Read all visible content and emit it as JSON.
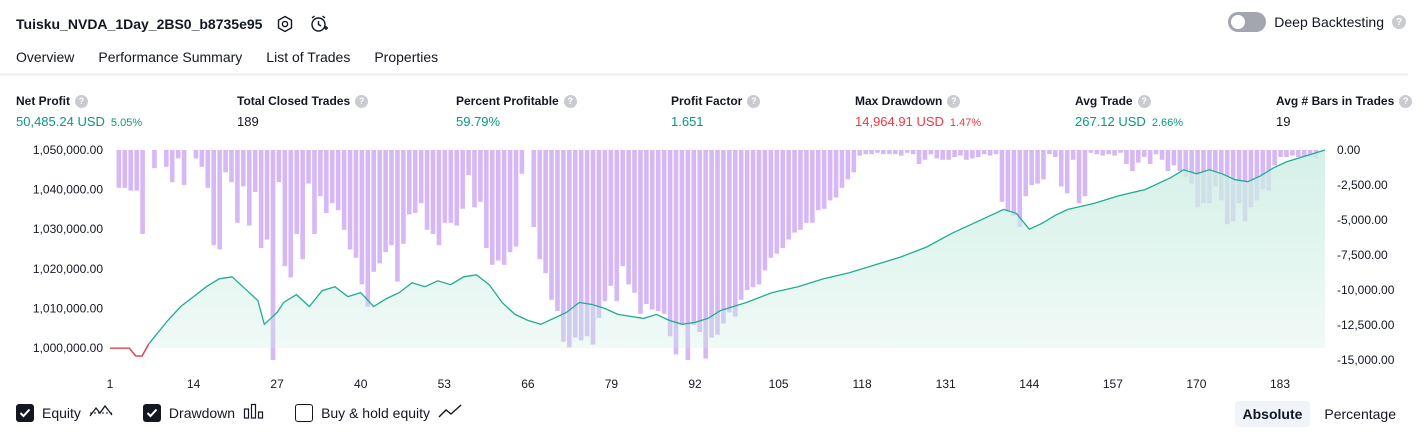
{
  "header": {
    "title": "Tuisku_NVDA_1Day_2BS0_b8735e95",
    "deep_backtesting_label": "Deep Backtesting",
    "help_glyph": "?"
  },
  "tabs": [
    {
      "label": "Overview",
      "active": true
    },
    {
      "label": "Performance Summary",
      "active": false
    },
    {
      "label": "List of Trades",
      "active": false
    },
    {
      "label": "Properties",
      "active": false
    }
  ],
  "metrics": [
    {
      "label": "Net Profit",
      "value": "50,485.24 USD",
      "pct": "5.05%",
      "color": "green"
    },
    {
      "label": "Total Closed Trades",
      "value": "189",
      "pct": "",
      "color": "dark"
    },
    {
      "label": "Percent Profitable",
      "value": "59.79%",
      "pct": "",
      "color": "green"
    },
    {
      "label": "Profit Factor",
      "value": "1.651",
      "pct": "",
      "color": "green"
    },
    {
      "label": "Max Drawdown",
      "value": "14,964.91 USD",
      "pct": "1.47%",
      "color": "red"
    },
    {
      "label": "Avg Trade",
      "value": "267.12 USD",
      "pct": "2.66%",
      "color": "green"
    },
    {
      "label": "Avg # Bars in Trades",
      "value": "19",
      "pct": "",
      "color": "dark"
    }
  ],
  "colors": {
    "green": "#089981",
    "red": "#f23645",
    "equity_line": "#22ab94",
    "equity_fill": "#cdeee4",
    "drawdown_bar": "#d6b8f5",
    "overlap_line": "#2962ff"
  },
  "chart_data": {
    "type": "area",
    "x_ticks": [
      "1",
      "14",
      "27",
      "40",
      "53",
      "66",
      "79",
      "92",
      "105",
      "118",
      "131",
      "144",
      "157",
      "170",
      "183"
    ],
    "y_left_ticks": [
      "1,050,000.00",
      "1,040,000.00",
      "1,030,000.00",
      "1,020,000.00",
      "1,010,000.00",
      "1,000,000.00"
    ],
    "y_right_ticks": [
      "0.00",
      "-2,500.00",
      "-5,000.00",
      "-7,500.00",
      "-10,000.00",
      "-12,500.00",
      "-15,000.00"
    ],
    "y_left_range": [
      997000,
      1050000
    ],
    "y_right_range": [
      -15000,
      0
    ],
    "x_range": [
      1,
      190
    ],
    "series": [
      {
        "name": "Equity",
        "type": "area",
        "x": [
          1,
          4,
          5,
          6,
          7,
          8,
          10,
          12,
          14,
          16,
          18,
          20,
          22,
          24,
          25,
          27,
          28,
          30,
          32,
          34,
          36,
          38,
          40,
          42,
          44,
          46,
          48,
          50,
          52,
          54,
          56,
          58,
          60,
          62,
          64,
          66,
          68,
          70,
          72,
          74,
          76,
          78,
          80,
          82,
          84,
          86,
          88,
          90,
          92,
          94,
          96,
          98,
          100,
          104,
          108,
          112,
          116,
          120,
          124,
          128,
          132,
          136,
          140,
          142,
          144,
          146,
          148,
          150,
          154,
          158,
          162,
          166,
          168,
          170,
          172,
          174,
          176,
          178,
          180,
          182,
          184,
          186,
          188,
          190
        ],
        "values": [
          1000000,
          1000000,
          998000,
          998000,
          1001000,
          1003000,
          1007000,
          1010500,
          1013000,
          1015500,
          1017500,
          1018000,
          1015000,
          1012000,
          1006000,
          1009000,
          1011500,
          1013500,
          1010500,
          1014500,
          1015500,
          1013000,
          1014000,
          1010500,
          1012500,
          1014000,
          1016500,
          1015500,
          1017000,
          1016000,
          1018000,
          1018500,
          1016000,
          1011500,
          1008500,
          1007000,
          1006000,
          1007500,
          1009000,
          1011500,
          1011000,
          1010000,
          1008500,
          1008000,
          1007500,
          1008500,
          1007000,
          1006000,
          1006500,
          1007500,
          1009500,
          1010500,
          1011500,
          1014000,
          1015500,
          1017500,
          1019000,
          1021000,
          1023000,
          1025500,
          1029000,
          1032000,
          1035000,
          1034000,
          1030000,
          1031500,
          1033500,
          1035000,
          1036500,
          1038500,
          1040000,
          1043000,
          1045000,
          1044000,
          1045000,
          1044000,
          1042500,
          1042000,
          1043500,
          1045500,
          1047000,
          1048000,
          1049000,
          1050000
        ]
      },
      {
        "name": "Drawdown",
        "type": "bar",
        "values": [
          0,
          -2700,
          -2700,
          -2900,
          -2900,
          -6000,
          0,
          -1300,
          0,
          -1200,
          -2300,
          -600,
          -2500,
          0,
          -600,
          -1200,
          -2700,
          -6800,
          -7100,
          -1600,
          -2300,
          -5200,
          -2600,
          -5400,
          -3000,
          -7000,
          -6400,
          -15000,
          -2300,
          -8300,
          -9100,
          -6000,
          -7800,
          -2400,
          -6000,
          -3300,
          -4500,
          -3800,
          -4300,
          -5700,
          -7100,
          -7700,
          -9600,
          -11200,
          -8700,
          -8100,
          -7300,
          -6800,
          -9400,
          -6700,
          -4600,
          -4500,
          -3800,
          -5700,
          -6000,
          -6800,
          -5200,
          -5200,
          -5400,
          -4200,
          -1800,
          -4100,
          -3700,
          -7000,
          -8200,
          -7900,
          -8200,
          -7300,
          -6900,
          -1700,
          0,
          -5500,
          -7800,
          -8800,
          -10700,
          -11500,
          -13700,
          -14100,
          -13400,
          -13600,
          -13300,
          -13900,
          -12000,
          -10800,
          -9700,
          -10800,
          -8300,
          -9600,
          -10200,
          -11700,
          -11000,
          -11400,
          -11500,
          -11700,
          -13300,
          -14600,
          -12400,
          -15000,
          -12500,
          -13000,
          -14900,
          -13400,
          -13200,
          -12400,
          -11600,
          -11900,
          -10700,
          -10000,
          -9800,
          -9600,
          -8600,
          -7700,
          -7400,
          -7000,
          -6400,
          -5900,
          -5700,
          -5200,
          -5200,
          -4300,
          -4200,
          -3600,
          -3400,
          -2700,
          -2100,
          -1600,
          -400,
          -300,
          -300,
          -200,
          -300,
          -300,
          -300,
          -400,
          -200,
          -300,
          -1000,
          -700,
          -300,
          -600,
          -700,
          -700,
          -500,
          -400,
          -700,
          -600,
          -500,
          -300,
          -400,
          -300,
          -3700,
          -4400,
          -4700,
          -5500,
          -3300,
          -2500,
          -2400,
          -2100,
          -300,
          -500,
          -2600,
          -3100,
          -700,
          -3800,
          -3300,
          -200,
          -300,
          -400,
          -300,
          -400,
          -200,
          -1000,
          -1500,
          -900,
          -500,
          -1000,
          -300,
          -700,
          -1500,
          -1100,
          -1500,
          -1900,
          -2400,
          -4100,
          -3800,
          -3800,
          -2600,
          -3600,
          -5300,
          -5100,
          -3800,
          -5100,
          -4100,
          -3600,
          -2800,
          -2900,
          -1100,
          -500,
          -500,
          -400,
          -500,
          -500,
          -500,
          -600,
          0
        ]
      }
    ]
  },
  "legend": [
    {
      "label": "Equity",
      "checked": true,
      "icon": "equity-icon"
    },
    {
      "label": "Drawdown",
      "checked": true,
      "icon": "drawdown-bars-icon"
    },
    {
      "label": "Buy & hold equity",
      "checked": false,
      "icon": "buy-hold-line-icon"
    }
  ],
  "modes": [
    {
      "label": "Absolute",
      "active": true
    },
    {
      "label": "Percentage",
      "active": false
    }
  ]
}
